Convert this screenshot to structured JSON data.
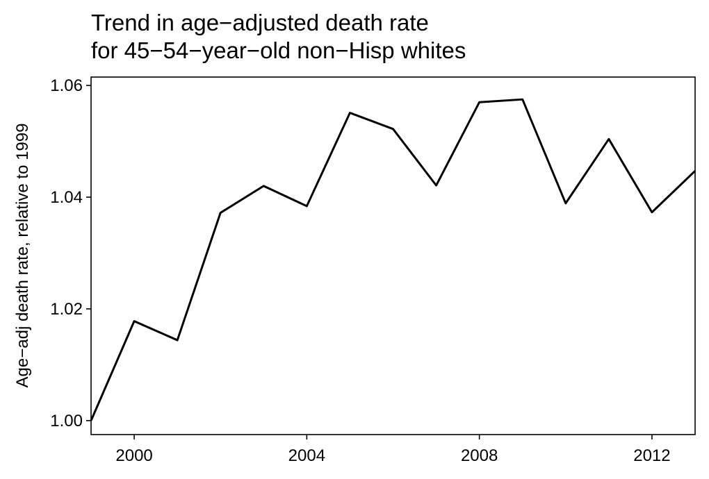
{
  "chart_data": {
    "type": "line",
    "title": [
      "Trend in age−adjusted death rate",
      "for 45−54−year−old non−Hisp whites"
    ],
    "xlabel": "",
    "ylabel": "Age−adj death rate, relative to 1999",
    "xlim": [
      1999,
      2013
    ],
    "ylim": [
      0.9975,
      1.0615
    ],
    "xticks": [
      2000,
      2004,
      2008,
      2012
    ],
    "xtick_labels": [
      "2000",
      "2004",
      "2008",
      "2012"
    ],
    "yticks": [
      1.0,
      1.02,
      1.04,
      1.06
    ],
    "ytick_labels": [
      "1.00",
      "1.02",
      "1.04",
      "1.06"
    ],
    "grid": false,
    "legend": "none",
    "line_color": "#000000",
    "x": [
      1999,
      2000,
      2001,
      2002,
      2003,
      2004,
      2005,
      2006,
      2007,
      2008,
      2009,
      2010,
      2011,
      2012,
      2013
    ],
    "series": [
      {
        "values": [
          1.0,
          1.0178,
          1.0144,
          1.0372,
          1.042,
          1.0384,
          1.0551,
          1.0522,
          1.0421,
          1.057,
          1.0575,
          1.0389,
          1.0504,
          1.0373,
          1.0447
        ]
      }
    ]
  }
}
